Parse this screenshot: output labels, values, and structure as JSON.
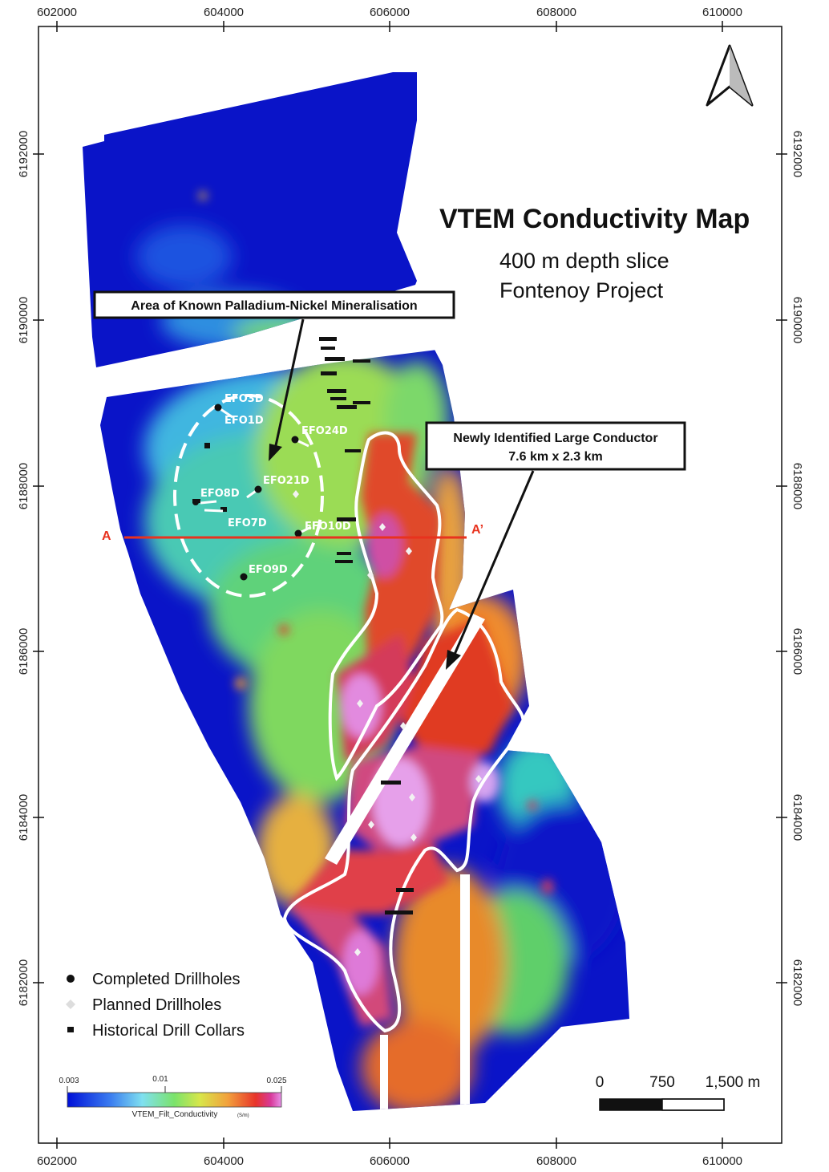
{
  "map": {
    "title": "VTEM Conductivity Map",
    "subtitle_line1": "400 m depth slice",
    "subtitle_line2": "Fontenoy Project",
    "x_ticks": [
      "602000",
      "604000",
      "606000",
      "608000",
      "610000"
    ],
    "y_ticks": [
      "6192000",
      "6190000",
      "6188000",
      "6186000",
      "6184000",
      "6182000"
    ],
    "north_arrow": "north-arrow-icon"
  },
  "callouts": {
    "known_area": "Area of Known Palladium-Nickel Mineralisation",
    "new_conductor_line1": "Newly Identified Large Conductor",
    "new_conductor_line2": "7.6 km x 2.3 km"
  },
  "section": {
    "start": "A",
    "end": "A’"
  },
  "drillholes": [
    "EFO3D",
    "EFO1D",
    "EFO24D",
    "EFO21D",
    "EFO8D",
    "EFO7D",
    "EFO10D",
    "EFO9D"
  ],
  "legend": {
    "completed": "Completed Drillholes",
    "planned": "Planned Drillholes",
    "historical": "Historical Drill Collars"
  },
  "colorbar": {
    "min": "0.003",
    "mid": "0.01",
    "max": "0.025",
    "label": "VTEM_Filt_Conductivity",
    "unit": "(S/m)"
  },
  "scalebar": {
    "zero": "0",
    "mid": "750",
    "end": "1,500 m"
  },
  "colors": {
    "low": "#0a14c8",
    "mid": "#4fd37a",
    "high": "#e63a1e",
    "peak": "#e27adf",
    "section_line": "#e8321e"
  }
}
